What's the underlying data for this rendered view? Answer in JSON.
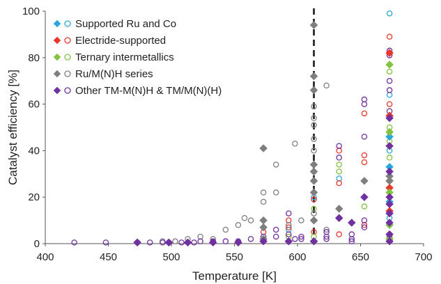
{
  "chart_data": {
    "type": "scatter",
    "xlabel": "Temperature [K]",
    "ylabel": "Catalyst efficiency [%]",
    "xlim": [
      400,
      700
    ],
    "ylim": [
      0,
      100
    ],
    "x_ticks": [
      "400",
      "450",
      "500",
      "550",
      "600",
      "650",
      "700"
    ],
    "y_ticks": [
      "0",
      "20",
      "40",
      "60",
      "80",
      "100"
    ],
    "legend_position": "top-left",
    "grid": false,
    "reference_line": {
      "x": 613,
      "style": "dashed",
      "color": "#111111"
    },
    "series": [
      {
        "name": "Supported Ru and Co",
        "color": "#29a8e0",
        "filled": [
          [
            673,
            33
          ],
          [
            673,
            46
          ],
          [
            673,
            18
          ]
        ],
        "hollow": [
          [
            673,
            99
          ],
          [
            673,
            64
          ],
          [
            673,
            40
          ],
          [
            633,
            28
          ],
          [
            613,
            20
          ],
          [
            593,
            6
          ],
          [
            673,
            11
          ]
        ]
      },
      {
        "name": "Electride-supported",
        "color": "#e8382b",
        "filled": [
          [
            673,
            82
          ],
          [
            673,
            55
          ],
          [
            673,
            24
          ],
          [
            613,
            10
          ],
          [
            673,
            14
          ]
        ],
        "hollow": [
          [
            673,
            89
          ],
          [
            673,
            82
          ],
          [
            673,
            60
          ],
          [
            653,
            56
          ],
          [
            653,
            38
          ],
          [
            653,
            35
          ],
          [
            633,
            40
          ],
          [
            633,
            26
          ],
          [
            613,
            19
          ],
          [
            593,
            10
          ],
          [
            593,
            7
          ],
          [
            573,
            5
          ],
          [
            613,
            5
          ],
          [
            633,
            4
          ],
          [
            653,
            8
          ],
          [
            673,
            48
          ]
        ]
      },
      {
        "name": "Ternary intermetallics",
        "color": "#82c341",
        "filled": [
          [
            673,
            77
          ],
          [
            673,
            48
          ],
          [
            673,
            27
          ],
          [
            673,
            22
          ],
          [
            673,
            8
          ],
          [
            673,
            2
          ]
        ],
        "hollow": [
          [
            673,
            74
          ],
          [
            673,
            50
          ],
          [
            673,
            44
          ],
          [
            673,
            37
          ],
          [
            653,
            16
          ],
          [
            633,
            34
          ],
          [
            633,
            31
          ],
          [
            613,
            15
          ],
          [
            613,
            3
          ],
          [
            593,
            3
          ],
          [
            573,
            2
          ],
          [
            673,
            1
          ]
        ]
      },
      {
        "name": "Ru/M(N)H series",
        "color": "#7f7f7f",
        "filled": [
          [
            613,
            94
          ],
          [
            613,
            72
          ],
          [
            613,
            66
          ],
          [
            613,
            34
          ],
          [
            613,
            31
          ],
          [
            613,
            27
          ],
          [
            613,
            22
          ],
          [
            613,
            10
          ],
          [
            613,
            1
          ],
          [
            573,
            41
          ],
          [
            573,
            10
          ],
          [
            573,
            7
          ],
          [
            653,
            27
          ],
          [
            633,
            15
          ],
          [
            673,
            27
          ],
          [
            673,
            29
          ],
          [
            573,
            2
          ]
        ],
        "hollow": [
          [
            623,
            68
          ],
          [
            613,
            59
          ],
          [
            613,
            54
          ],
          [
            613,
            51
          ],
          [
            598,
            43
          ],
          [
            583,
            34
          ],
          [
            573,
            22
          ],
          [
            573,
            18
          ],
          [
            583,
            22
          ],
          [
            563,
            10
          ],
          [
            558,
            11
          ],
          [
            553,
            8
          ],
          [
            543,
            6
          ],
          [
            533,
            2
          ],
          [
            523,
            3
          ],
          [
            513,
            2
          ],
          [
            503,
            1
          ],
          [
            493,
            1
          ],
          [
            613,
            45
          ],
          [
            613,
            40
          ],
          [
            603,
            10
          ],
          [
            593,
            8
          ],
          [
            613,
            13
          ],
          [
            623,
            6
          ],
          [
            633,
            11
          ]
        ]
      },
      {
        "name": "Other TM-M(N)H & TM/M(N)(H)",
        "color": "#7030a0",
        "filled": [
          [
            673,
            54
          ],
          [
            673,
            42
          ],
          [
            673,
            31
          ],
          [
            673,
            20
          ],
          [
            673,
            17
          ],
          [
            673,
            13
          ],
          [
            673,
            9
          ],
          [
            653,
            20
          ],
          [
            643,
            9
          ],
          [
            633,
            11
          ],
          [
            613,
            1
          ],
          [
            593,
            1
          ],
          [
            573,
            1
          ],
          [
            553,
            0.5
          ],
          [
            533,
            0.5
          ],
          [
            513,
            0.5
          ],
          [
            498,
            0.5
          ],
          [
            473,
            0.5
          ],
          [
            673,
            4
          ],
          [
            673,
            1
          ]
        ],
        "hollow": [
          [
            673,
            83
          ],
          [
            673,
            81
          ],
          [
            673,
            70
          ],
          [
            673,
            57
          ],
          [
            653,
            62
          ],
          [
            653,
            60
          ],
          [
            653,
            46
          ],
          [
            633,
            42
          ],
          [
            633,
            37
          ],
          [
            623,
            5
          ],
          [
            623,
            3
          ],
          [
            623,
            2
          ],
          [
            643,
            4
          ],
          [
            643,
            2
          ],
          [
            643,
            1
          ],
          [
            603,
            3
          ],
          [
            603,
            2
          ],
          [
            598,
            2
          ],
          [
            593,
            13
          ],
          [
            593,
            4
          ],
          [
            583,
            6
          ],
          [
            583,
            3
          ],
          [
            573,
            3
          ],
          [
            563,
            2
          ],
          [
            553,
            1
          ],
          [
            543,
            1
          ],
          [
            533,
            1
          ],
          [
            523,
            1
          ],
          [
            518,
            0.5
          ],
          [
            508,
            0.5
          ],
          [
            498,
            0.5
          ],
          [
            493,
            0.5
          ],
          [
            483,
            0.5
          ],
          [
            473,
            0.5
          ],
          [
            448,
            0.5
          ],
          [
            423,
            0.5
          ],
          [
            653,
            10
          ],
          [
            653,
            7
          ],
          [
            673,
            66
          ],
          [
            673,
            3
          ]
        ]
      }
    ]
  }
}
